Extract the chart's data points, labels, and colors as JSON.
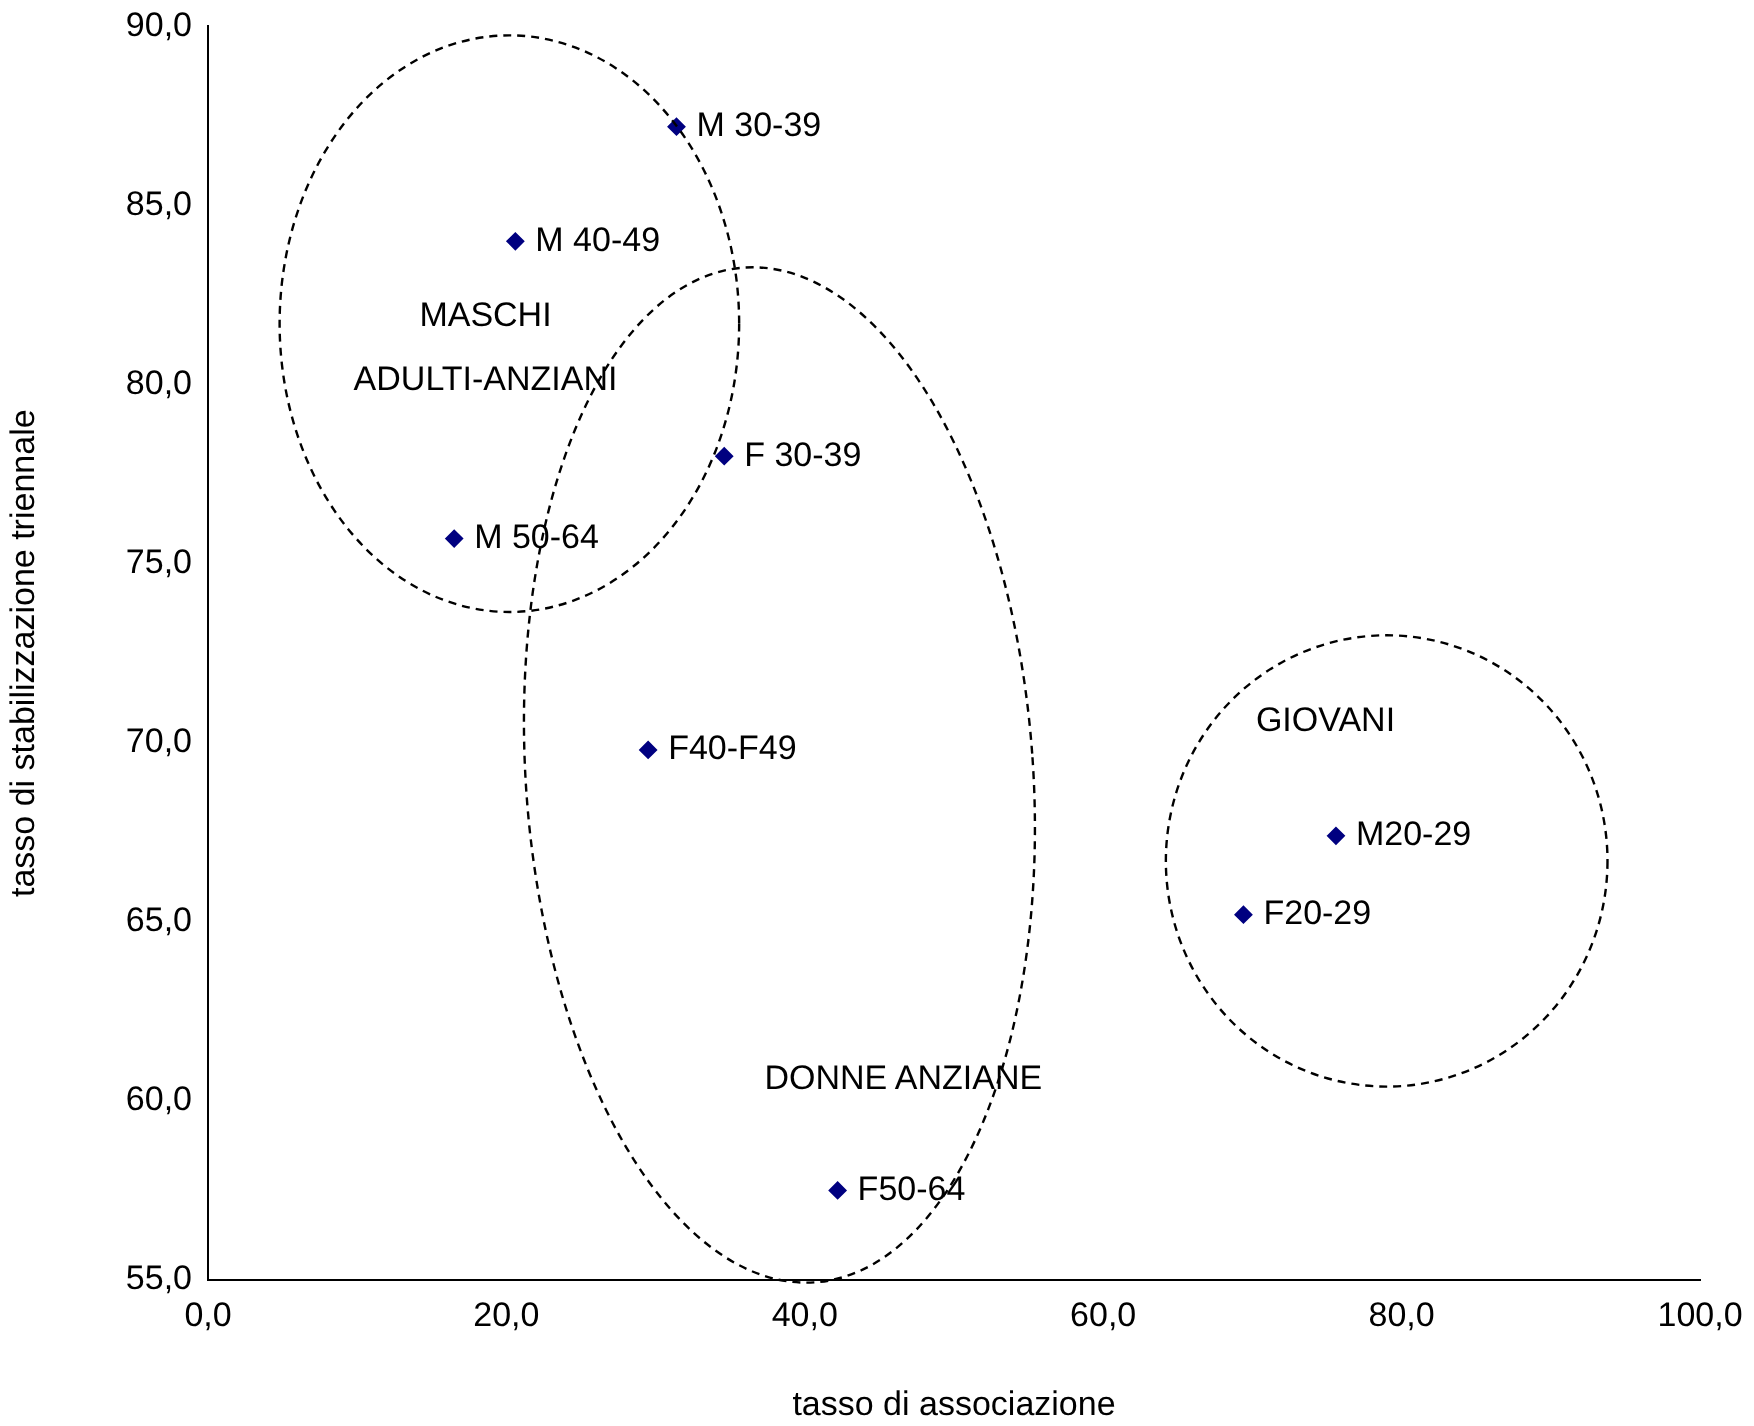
{
  "chart_data": {
    "type": "scatter",
    "xlabel": "tasso di associazione",
    "ylabel": "tasso di stabilizzazione triennale",
    "x": [
      31.4,
      20.6,
      34.6,
      16.5,
      29.5,
      75.6,
      69.4,
      42.2
    ],
    "series": [
      {
        "color": "#000080",
        "values": [
          87.2,
          84.0,
          78.0,
          75.7,
          69.8,
          67.4,
          65.2,
          57.5
        ]
      }
    ],
    "marker": "diamond",
    "legend": false,
    "grid": false,
    "xlim": [
      0,
      100
    ],
    "xticks": [
      {
        "value": 0,
        "label": "0,0"
      },
      {
        "value": 20,
        "label": "20,0"
      },
      {
        "value": 40,
        "label": "40,0"
      },
      {
        "value": 60,
        "label": "60,0"
      },
      {
        "value": 80,
        "label": "80,0"
      },
      {
        "value": 100,
        "label": "100,0"
      }
    ],
    "ylim": [
      55,
      90
    ],
    "yticks": [
      {
        "value": 55,
        "label": "55,0"
      },
      {
        "value": 60,
        "label": "60,0"
      },
      {
        "value": 65,
        "label": "65,0"
      },
      {
        "value": 70,
        "label": "70,0"
      },
      {
        "value": 75,
        "label": "75,0"
      },
      {
        "value": 80,
        "label": "80,0"
      },
      {
        "value": 85,
        "label": "85,0"
      },
      {
        "value": 90,
        "label": "90,0"
      }
    ],
    "annotations": [
      {
        "text": "M 30-39",
        "x": 31.4,
        "y": 87.2
      },
      {
        "text": "M 40-49",
        "x": 20.6,
        "y": 84.0
      },
      {
        "text": "F 30-39",
        "x": 34.6,
        "y": 78.0
      },
      {
        "text": "M 50-64",
        "x": 16.5,
        "y": 75.7
      },
      {
        "text": "F40-F49",
        "x": 29.5,
        "y": 69.8
      },
      {
        "text": "M20-29",
        "x": 75.6,
        "y": 67.4
      },
      {
        "text": "F20-29",
        "x": 69.4,
        "y": 65.2
      },
      {
        "text": "F50-64",
        "x": 42.2,
        "y": 57.5
      },
      "MASCHI ADULTI-ANZIANI",
      "DONNE ANZIANE",
      "GIOVANI"
    ]
  }
}
